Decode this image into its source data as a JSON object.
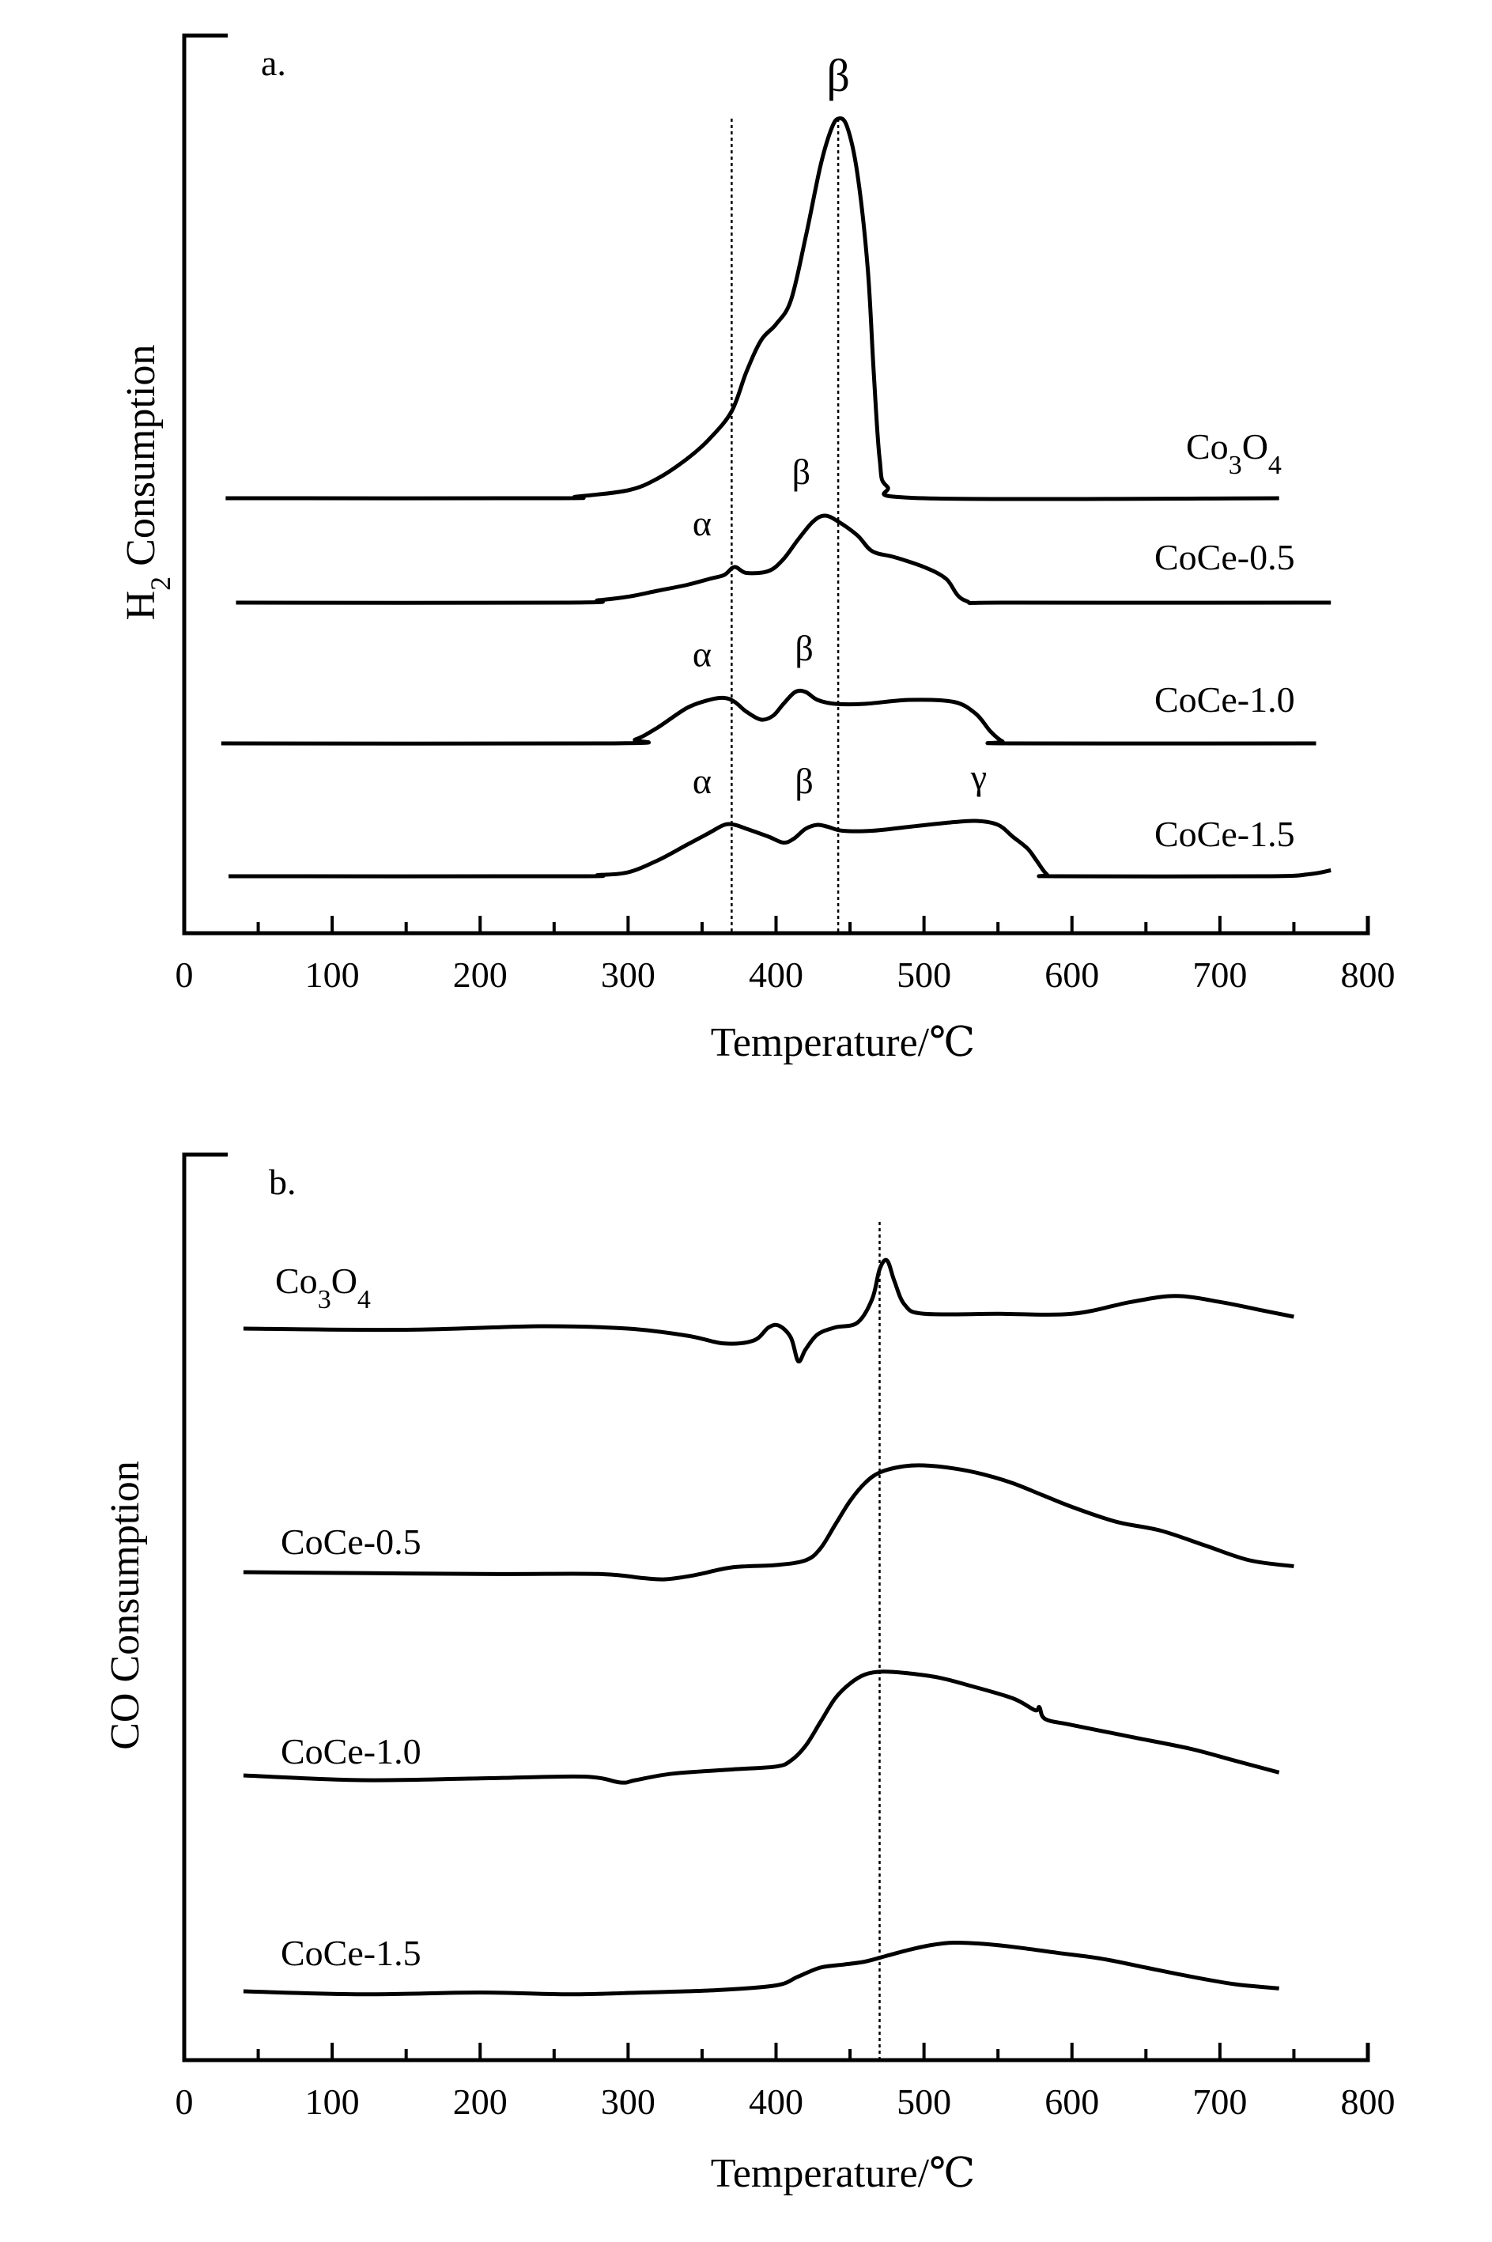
{
  "chart_data": [
    {
      "type": "line",
      "panel_label": "a.",
      "xlabel": "Temperature/℃",
      "ylabel_main": "H",
      "ylabel_sub": "2",
      "ylabel_rest": " Consumption",
      "xlim": [
        0,
        800
      ],
      "x_ticks": [
        "0",
        "100",
        "200",
        "300",
        "400",
        "500",
        "600",
        "700",
        "800"
      ],
      "y_ticks": [],
      "reference_lines_x": [
        370,
        442
      ],
      "series": [
        {
          "label_main": "Co",
          "label_sub1": "3",
          "label_mid": "O",
          "label_sub2": "4",
          "points": [
            [
              28,
              0
            ],
            [
              250,
              0
            ],
            [
              265,
              0.004
            ],
            [
              300,
              0.02
            ],
            [
              320,
              0.05
            ],
            [
              340,
              0.1
            ],
            [
              355,
              0.15
            ],
            [
              370,
              0.22
            ],
            [
              380,
              0.32
            ],
            [
              390,
              0.4
            ],
            [
              400,
              0.44
            ],
            [
              410,
              0.5
            ],
            [
              420,
              0.66
            ],
            [
              430,
              0.84
            ],
            [
              437,
              0.93
            ],
            [
              442,
              0.96
            ],
            [
              448,
              0.94
            ],
            [
              455,
              0.82
            ],
            [
              462,
              0.58
            ],
            [
              466,
              0.32
            ],
            [
              470,
              0.1
            ],
            [
              475,
              0.03
            ],
            [
              500,
              0
            ],
            [
              740,
              0
            ]
          ]
        },
        {
          "label": "CoCe-0.5",
          "points": [
            [
              35,
              0
            ],
            [
              260,
              0
            ],
            [
              280,
              0.006
            ],
            [
              300,
              0.015
            ],
            [
              320,
              0.03
            ],
            [
              340,
              0.045
            ],
            [
              355,
              0.06
            ],
            [
              365,
              0.07
            ],
            [
              372,
              0.09
            ],
            [
              380,
              0.075
            ],
            [
              395,
              0.08
            ],
            [
              405,
              0.11
            ],
            [
              415,
              0.16
            ],
            [
              425,
              0.205
            ],
            [
              433,
              0.22
            ],
            [
              442,
              0.205
            ],
            [
              455,
              0.17
            ],
            [
              465,
              0.13
            ],
            [
              480,
              0.115
            ],
            [
              500,
              0.09
            ],
            [
              515,
              0.06
            ],
            [
              528,
              0.005
            ],
            [
              560,
              0
            ],
            [
              775,
              0
            ]
          ]
        },
        {
          "label": "CoCe-1.0",
          "points": [
            [
              25,
              0
            ],
            [
              290,
              0
            ],
            [
              305,
              0.01
            ],
            [
              320,
              0.04
            ],
            [
              340,
              0.09
            ],
            [
              355,
              0.11
            ],
            [
              365,
              0.115
            ],
            [
              372,
              0.105
            ],
            [
              380,
              0.08
            ],
            [
              390,
              0.06
            ],
            [
              398,
              0.07
            ],
            [
              405,
              0.1
            ],
            [
              413,
              0.13
            ],
            [
              420,
              0.13
            ],
            [
              428,
              0.11
            ],
            [
              440,
              0.1
            ],
            [
              460,
              0.1
            ],
            [
              490,
              0.11
            ],
            [
              520,
              0.105
            ],
            [
              535,
              0.075
            ],
            [
              545,
              0.03
            ],
            [
              553,
              0.005
            ],
            [
              560,
              0
            ],
            [
              765,
              0
            ]
          ]
        },
        {
          "label": "CoCe-1.5",
          "points": [
            [
              30,
              0
            ],
            [
              260,
              0
            ],
            [
              280,
              0.003
            ],
            [
              300,
              0.01
            ],
            [
              320,
              0.04
            ],
            [
              340,
              0.08
            ],
            [
              355,
              0.11
            ],
            [
              365,
              0.13
            ],
            [
              372,
              0.13
            ],
            [
              380,
              0.12
            ],
            [
              395,
              0.1
            ],
            [
              405,
              0.085
            ],
            [
              412,
              0.095
            ],
            [
              420,
              0.12
            ],
            [
              428,
              0.13
            ],
            [
              435,
              0.125
            ],
            [
              445,
              0.115
            ],
            [
              465,
              0.115
            ],
            [
              490,
              0.125
            ],
            [
              515,
              0.135
            ],
            [
              535,
              0.14
            ],
            [
              550,
              0.13
            ],
            [
              560,
              0.1
            ],
            [
              570,
              0.07
            ],
            [
              576,
              0.04
            ],
            [
              583,
              0.005
            ],
            [
              590,
              0
            ],
            [
              730,
              0
            ],
            [
              760,
              0.005
            ],
            [
              775,
              0.015
            ]
          ]
        }
      ],
      "peak_labels": [
        {
          "text": "β",
          "series": 0,
          "x": 442,
          "style": "big"
        },
        {
          "text": "α",
          "series": 1,
          "x": 350
        },
        {
          "text": "β",
          "series": 1,
          "x": 417
        },
        {
          "text": "α",
          "series": 2,
          "x": 350
        },
        {
          "text": "β",
          "series": 2,
          "x": 419
        },
        {
          "text": "α",
          "series": 3,
          "x": 350
        },
        {
          "text": "β",
          "series": 3,
          "x": 419
        },
        {
          "text": "γ",
          "series": 3,
          "x": 537
        }
      ]
    },
    {
      "type": "line",
      "panel_label": "b.",
      "xlabel": "Temperature/℃",
      "ylabel": "CO Consumption",
      "xlim": [
        0,
        800
      ],
      "x_ticks": [
        "0",
        "100",
        "200",
        "300",
        "400",
        "500",
        "600",
        "700",
        "800"
      ],
      "y_ticks": [],
      "reference_lines_x": [
        470
      ],
      "series": [
        {
          "label_main": "Co",
          "label_sub1": "3",
          "label_mid": "O",
          "label_sub2": "4",
          "points": [
            [
              40,
              0
            ],
            [
              150,
              -0.002
            ],
            [
              240,
              0.004
            ],
            [
              300,
              0
            ],
            [
              340,
              -0.012
            ],
            [
              365,
              -0.025
            ],
            [
              385,
              -0.02
            ],
            [
              395,
              0.002
            ],
            [
              402,
              0.005
            ],
            [
              410,
              -0.015
            ],
            [
              415,
              -0.055
            ],
            [
              420,
              -0.035
            ],
            [
              428,
              -0.01
            ],
            [
              440,
              0.002
            ],
            [
              455,
              0.01
            ],
            [
              465,
              0.05
            ],
            [
              470,
              0.1
            ],
            [
              475,
              0.115
            ],
            [
              480,
              0.08
            ],
            [
              487,
              0.04
            ],
            [
              500,
              0.025
            ],
            [
              550,
              0.025
            ],
            [
              600,
              0.025
            ],
            [
              640,
              0.045
            ],
            [
              670,
              0.055
            ],
            [
              700,
              0.045
            ],
            [
              730,
              0.03
            ],
            [
              750,
              0.02
            ]
          ]
        },
        {
          "label": "CoCe-0.5",
          "points": [
            [
              40,
              0
            ],
            [
              200,
              -0.003
            ],
            [
              280,
              -0.003
            ],
            [
              310,
              -0.01
            ],
            [
              325,
              -0.012
            ],
            [
              345,
              -0.005
            ],
            [
              370,
              0.008
            ],
            [
              400,
              0.012
            ],
            [
              420,
              0.02
            ],
            [
              430,
              0.04
            ],
            [
              440,
              0.08
            ],
            [
              450,
              0.12
            ],
            [
              460,
              0.15
            ],
            [
              470,
              0.168
            ],
            [
              485,
              0.178
            ],
            [
              500,
              0.18
            ],
            [
              520,
              0.175
            ],
            [
              540,
              0.165
            ],
            [
              560,
              0.15
            ],
            [
              580,
              0.13
            ],
            [
              600,
              0.11
            ],
            [
              630,
              0.085
            ],
            [
              660,
              0.07
            ],
            [
              690,
              0.045
            ],
            [
              720,
              0.02
            ],
            [
              750,
              0.01
            ]
          ]
        },
        {
          "label": "CoCe-1.0",
          "points": [
            [
              40,
              0
            ],
            [
              120,
              -0.008
            ],
            [
              200,
              -0.005
            ],
            [
              270,
              -0.002
            ],
            [
              295,
              -0.012
            ],
            [
              305,
              -0.008
            ],
            [
              330,
              0.003
            ],
            [
              370,
              0.01
            ],
            [
              400,
              0.015
            ],
            [
              410,
              0.025
            ],
            [
              420,
              0.05
            ],
            [
              430,
              0.09
            ],
            [
              440,
              0.13
            ],
            [
              450,
              0.155
            ],
            [
              460,
              0.17
            ],
            [
              472,
              0.175
            ],
            [
              490,
              0.172
            ],
            [
              510,
              0.165
            ],
            [
              530,
              0.152
            ],
            [
              560,
              0.13
            ],
            [
              575,
              0.11
            ],
            [
              578,
              0.115
            ],
            [
              582,
              0.095
            ],
            [
              600,
              0.085
            ],
            [
              640,
              0.065
            ],
            [
              680,
              0.045
            ],
            [
              710,
              0.025
            ],
            [
              740,
              0.005
            ]
          ]
        },
        {
          "label": "CoCe-1.5",
          "points": [
            [
              40,
              0
            ],
            [
              120,
              -0.005
            ],
            [
              200,
              -0.002
            ],
            [
              260,
              -0.005
            ],
            [
              310,
              -0.002
            ],
            [
              360,
              0.002
            ],
            [
              400,
              0.01
            ],
            [
              415,
              0.025
            ],
            [
              430,
              0.04
            ],
            [
              445,
              0.045
            ],
            [
              460,
              0.05
            ],
            [
              475,
              0.06
            ],
            [
              490,
              0.07
            ],
            [
              505,
              0.078
            ],
            [
              520,
              0.082
            ],
            [
              540,
              0.08
            ],
            [
              560,
              0.075
            ],
            [
              590,
              0.065
            ],
            [
              620,
              0.055
            ],
            [
              650,
              0.04
            ],
            [
              680,
              0.025
            ],
            [
              710,
              0.012
            ],
            [
              740,
              0.005
            ]
          ]
        }
      ]
    }
  ]
}
